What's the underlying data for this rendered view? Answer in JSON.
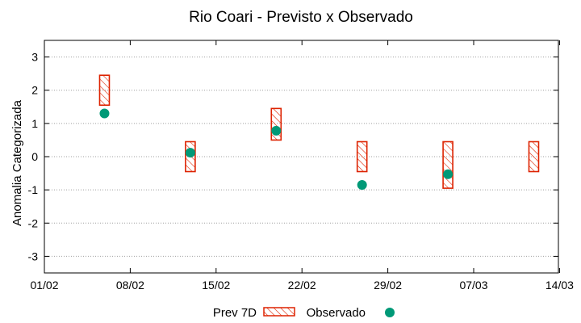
{
  "chart_data": {
    "type": "range",
    "title": "Rio Coari - Previsto x Observado",
    "xlabel": "",
    "ylabel": "Anomalia Categorizada",
    "x_range_days": [
      0,
      41
    ],
    "x_ticks": [
      {
        "day": 0,
        "label": "01/02"
      },
      {
        "day": 7,
        "label": "08/02"
      },
      {
        "day": 14,
        "label": "15/02"
      },
      {
        "day": 21,
        "label": "22/02"
      },
      {
        "day": 28,
        "label": "29/02"
      },
      {
        "day": 35,
        "label": "07/03"
      },
      {
        "day": 42,
        "label": "14/03"
      }
    ],
    "ylim": [
      -3.5,
      3.5
    ],
    "y_ticks": [
      -3,
      -2,
      -1,
      0,
      1,
      2,
      3
    ],
    "grid": true,
    "series": [
      {
        "name": "Prev 7D",
        "kind": "box",
        "color": "#dd2200",
        "points": [
          {
            "day": 4.9,
            "low": 1.55,
            "high": 2.45
          },
          {
            "day": 11.9,
            "low": -0.45,
            "high": 0.45
          },
          {
            "day": 18.9,
            "low": 0.5,
            "high": 1.45
          },
          {
            "day": 25.9,
            "low": -0.45,
            "high": 0.45
          },
          {
            "day": 32.9,
            "low": -0.95,
            "high": 0.45
          },
          {
            "day": 39.9,
            "low": -0.45,
            "high": 0.45
          }
        ]
      },
      {
        "name": "Observado",
        "kind": "point",
        "color": "#009977",
        "points": [
          {
            "day": 4.9,
            "value": 1.3
          },
          {
            "day": 11.9,
            "value": 0.12
          },
          {
            "day": 18.9,
            "value": 0.78
          },
          {
            "day": 25.9,
            "value": -0.85
          },
          {
            "day": 32.9,
            "value": -0.53
          }
        ]
      }
    ],
    "legend": {
      "placement": "bottom-center",
      "labels": [
        "Prev 7D",
        "Observado"
      ]
    }
  }
}
